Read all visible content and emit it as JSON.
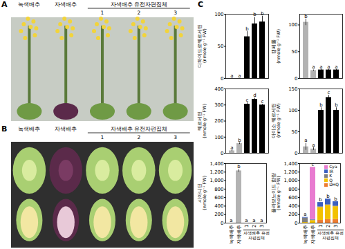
{
  "figure": {
    "panel_labels": [
      "A",
      "B",
      "C"
    ],
    "photo_panels": [
      {
        "label": "A",
        "labels": [
          "녹색배추",
          "자색배추"
        ],
        "group": "자색배추 유전자편집체",
        "numbers": [
          "1",
          "2",
          "3"
        ]
      },
      {
        "label": "B",
        "labels": [
          "녹색배추",
          "자색배추"
        ],
        "group": "자색배추 유전자편집체",
        "numbers": [
          "1",
          "2",
          "3"
        ]
      }
    ]
  },
  "chart_data": [
    {
      "type": "bar",
      "ylabel": "디하이드로퀘르세틴\n(nmole g⁻¹ FW)",
      "categories": [
        "녹색배추",
        "자색배추",
        "1",
        "2",
        "3"
      ],
      "values": [
        0,
        0,
        65,
        85,
        88
      ],
      "errors": [
        0,
        0,
        8,
        10,
        9
      ],
      "letters": [
        "a",
        "a",
        "b",
        "b",
        "b"
      ],
      "colors": [
        "#b3b3b3",
        "#b3b3b3",
        "#000000",
        "#000000",
        "#000000"
      ],
      "ylim": [
        0,
        100
      ],
      "yticks": [
        0,
        50,
        100
      ],
      "tick_labels": "y"
    },
    {
      "type": "bar",
      "ylabel": "캠페롤\n(nmole g⁻¹ FW)",
      "categories": [
        "녹색배추",
        "자색배추",
        "1",
        "2",
        "3"
      ],
      "values": [
        105,
        15,
        16,
        16,
        16
      ],
      "errors": [
        6,
        1,
        1,
        1,
        1
      ],
      "letters": [
        "b",
        "a",
        "a",
        "a",
        "a"
      ],
      "colors": [
        "#b3b3b3",
        "#b3b3b3",
        "#000000",
        "#000000",
        "#000000"
      ],
      "ylim": [
        0,
        120
      ],
      "yticks": [
        0,
        50,
        100
      ],
      "tick_labels": "y"
    },
    {
      "type": "bar",
      "ylabel": "퀘르세틴\n(nmole g⁻¹ FW)",
      "categories": [
        "녹색배추",
        "자색배추",
        "1",
        "2",
        "3"
      ],
      "values": [
        15,
        60,
        305,
        335,
        300
      ],
      "errors": [
        3,
        5,
        10,
        8,
        5
      ],
      "letters": [
        "a",
        "b",
        "c",
        "d",
        "c"
      ],
      "colors": [
        "#b3b3b3",
        "#b3b3b3",
        "#000000",
        "#000000",
        "#000000"
      ],
      "ylim": [
        0,
        400
      ],
      "yticks": [
        0,
        100,
        200,
        300,
        400
      ],
      "tick_labels": "y"
    },
    {
      "type": "bar",
      "ylabel": "아이소 퀘르세틴\n(nmole g⁻¹ FW)",
      "categories": [
        "녹색배추",
        "자색배추",
        "1",
        "2",
        "3"
      ],
      "values": [
        15,
        10,
        100,
        130,
        100
      ],
      "errors": [
        8,
        3,
        6,
        5,
        6
      ],
      "letters": [
        "a",
        "a",
        "b",
        "c",
        "b"
      ],
      "colors": [
        "#b3b3b3",
        "#b3b3b3",
        "#000000",
        "#000000",
        "#000000"
      ],
      "ylim": [
        0,
        150
      ],
      "yticks": [
        0,
        50,
        100,
        150
      ],
      "tick_labels": "y"
    },
    {
      "type": "bar",
      "ylabel": "시아니딘\n(nmole g⁻¹ FW)",
      "categories": [
        "녹색배추",
        "자색배추",
        "1",
        "2",
        "3"
      ],
      "x_group": {
        "label": "자색배추 유전자편집체",
        "categories": [
          "1",
          "2",
          "3"
        ]
      },
      "values": [
        0,
        1230,
        0,
        0,
        0
      ],
      "errors": [
        0,
        30,
        0,
        0,
        0
      ],
      "letters": [
        "a",
        "b",
        "a",
        "a",
        "a"
      ],
      "colors": [
        "#b3b3b3",
        "#b3b3b3",
        "#000000",
        "#000000",
        "#000000"
      ],
      "ylim": [
        0,
        1400
      ],
      "yticks": [
        0,
        200,
        400,
        600,
        800,
        {
          "value": 1000,
          "label": "1,000"
        },
        {
          "value": 1200,
          "label": "1,200"
        },
        {
          "value": 1400,
          "label": "1,400"
        }
      ]
    },
    {
      "type": "bar",
      "stacked": true,
      "ylabel": "플라보노이드 함량\n(nmole g⁻¹ FW)",
      "categories": [
        "녹색배추",
        "자색배추",
        "1",
        "2",
        "3"
      ],
      "x_group": {
        "label": "자색배추 유전자편집체",
        "categories": [
          "1",
          "2",
          "3"
        ]
      },
      "series": [
        {
          "name": "Cya",
          "color": "#e87bd0",
          "values": [
            0,
            1230,
            0,
            0,
            0
          ]
        },
        {
          "name": "IR",
          "color": "#3b5fc0",
          "values": [
            15,
            10,
            100,
            130,
            100
          ]
        },
        {
          "name": "K",
          "color": "#7f7f7f",
          "values": [
            105,
            15,
            16,
            16,
            16
          ]
        },
        {
          "name": "Q",
          "color": "#f2c200",
          "values": [
            15,
            60,
            305,
            335,
            300
          ]
        },
        {
          "name": "DHQ",
          "color": "#ed7d31",
          "values": [
            0,
            0,
            65,
            85,
            88
          ]
        }
      ],
      "letters": [
        "a",
        "c",
        "b",
        "b",
        "b"
      ],
      "legend": "top-right",
      "ylim": [
        0,
        1400
      ],
      "yticks": [
        0,
        200,
        400,
        600,
        800,
        {
          "value": 1000,
          "label": "1,000"
        },
        {
          "value": 1200,
          "label": "1,200"
        },
        {
          "value": 1400,
          "label": "1,400"
        }
      ]
    }
  ]
}
